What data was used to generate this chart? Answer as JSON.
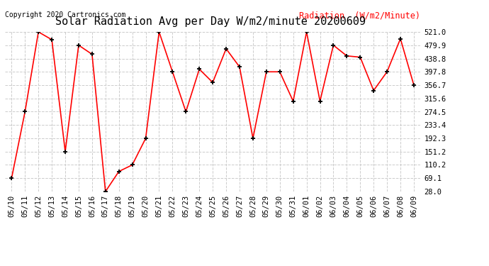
{
  "title": "Solar Radiation Avg per Day W/m2/minute 20200609",
  "copyright": "Copyright 2020 Cartronics.com",
  "legend_label": "Radiation  (W/m2/Minute)",
  "dates": [
    "05/10",
    "05/11",
    "05/12",
    "05/13",
    "05/14",
    "05/15",
    "05/16",
    "05/17",
    "05/18",
    "05/19",
    "05/20",
    "05/21",
    "05/22",
    "05/23",
    "05/24",
    "05/25",
    "05/26",
    "05/27",
    "05/28",
    "05/29",
    "05/30",
    "05/31",
    "06/01",
    "06/02",
    "06/03",
    "06/04",
    "06/05",
    "06/06",
    "06/07",
    "06/08",
    "06/09"
  ],
  "values": [
    69.1,
    274.5,
    521.0,
    497.0,
    151.2,
    479.9,
    452.0,
    28.0,
    90.0,
    110.2,
    192.3,
    521.0,
    397.8,
    274.5,
    406.0,
    365.0,
    469.0,
    413.0,
    192.3,
    397.8,
    397.8,
    307.0,
    521.0,
    307.0,
    479.9,
    447.0,
    443.0,
    340.0,
    397.8,
    500.0,
    356.7
  ],
  "yticks": [
    28.0,
    69.1,
    110.2,
    151.2,
    192.3,
    233.4,
    274.5,
    315.6,
    356.7,
    397.8,
    438.8,
    479.9,
    521.0
  ],
  "line_color": "red",
  "marker_color": "black",
  "bg_color": "#ffffff",
  "grid_color": "#cccccc",
  "title_fontsize": 11,
  "copyright_fontsize": 7,
  "legend_color": "red",
  "tick_fontsize": 7.5,
  "legend_fontsize": 8.5
}
